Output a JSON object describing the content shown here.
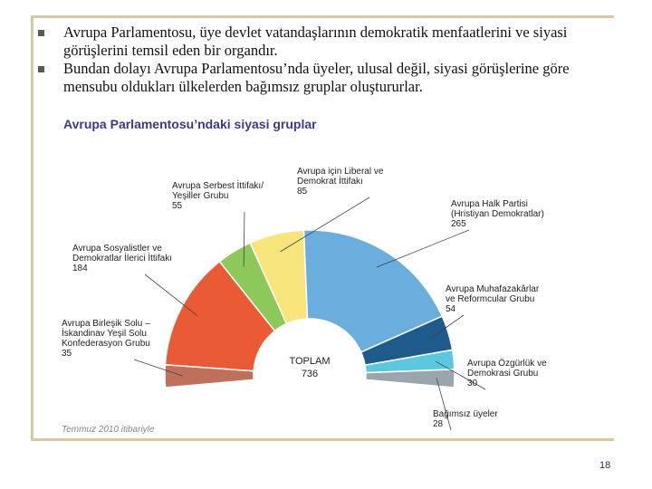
{
  "slide": {
    "bullets": [
      "Avrupa Parlamentosu, üye devlet vatandaşlarının demokratik menfaatlerini ve siyasi görüşlerini temsil eden bir organdır.",
      "Bundan dolayı Avrupa Parlamentosu’nda üyeler, ulusal değil, siyasi görüşlerine göre mensubu oldukları ülkelerden bağımsız gruplar oluştururlar."
    ],
    "page_number": "18",
    "colors": {
      "frame": "#d4c9a0",
      "title": "#3a3a8c"
    }
  },
  "chart_data": {
    "type": "pie",
    "style": "semicircle-donut",
    "title": "Avrupa Parlamentosu’ndaki siyasi gruplar",
    "center_label": "TOPLAM",
    "total": 736,
    "footnote": "Temmuz 2010 itibariyle",
    "slices": [
      {
        "label_lines": [
          "Avrupa Birleşik Solu –",
          "İskandinav Yeşil Solu",
          "Konfederasyon Grubu"
        ],
        "value": 35,
        "color": "#c0705a"
      },
      {
        "label_lines": [
          "Avrupa Sosyalistler ve",
          "Demokratlar İlerici İttifakı"
        ],
        "value": 184,
        "color": "#ea5a35"
      },
      {
        "label_lines": [
          "Avrupa Serbest İttifakı/",
          "Yeşiller Grubu"
        ],
        "value": 55,
        "color": "#8cc85a"
      },
      {
        "label_lines": [
          "Avrupa için Liberal ve",
          "Demokrat İttifakı"
        ],
        "value": 85,
        "color": "#f5e57a"
      },
      {
        "label_lines": [
          "Avrupa Halk Partisi",
          "(Hristiyan Demokratlar)"
        ],
        "value": 265,
        "color": "#6aaede"
      },
      {
        "label_lines": [
          "Avrupa Muhafazakârlar",
          "ve Reformcular Grubu"
        ],
        "value": 54,
        "color": "#1f5a8c"
      },
      {
        "label_lines": [
          "Avrupa Özgürlük ve",
          "Demokrasi Grubu"
        ],
        "value": 30,
        "color": "#5ac8de"
      },
      {
        "label_lines": [
          "Bağımsız üyeler"
        ],
        "value": 28,
        "color": "#9aa6ae"
      }
    ]
  }
}
